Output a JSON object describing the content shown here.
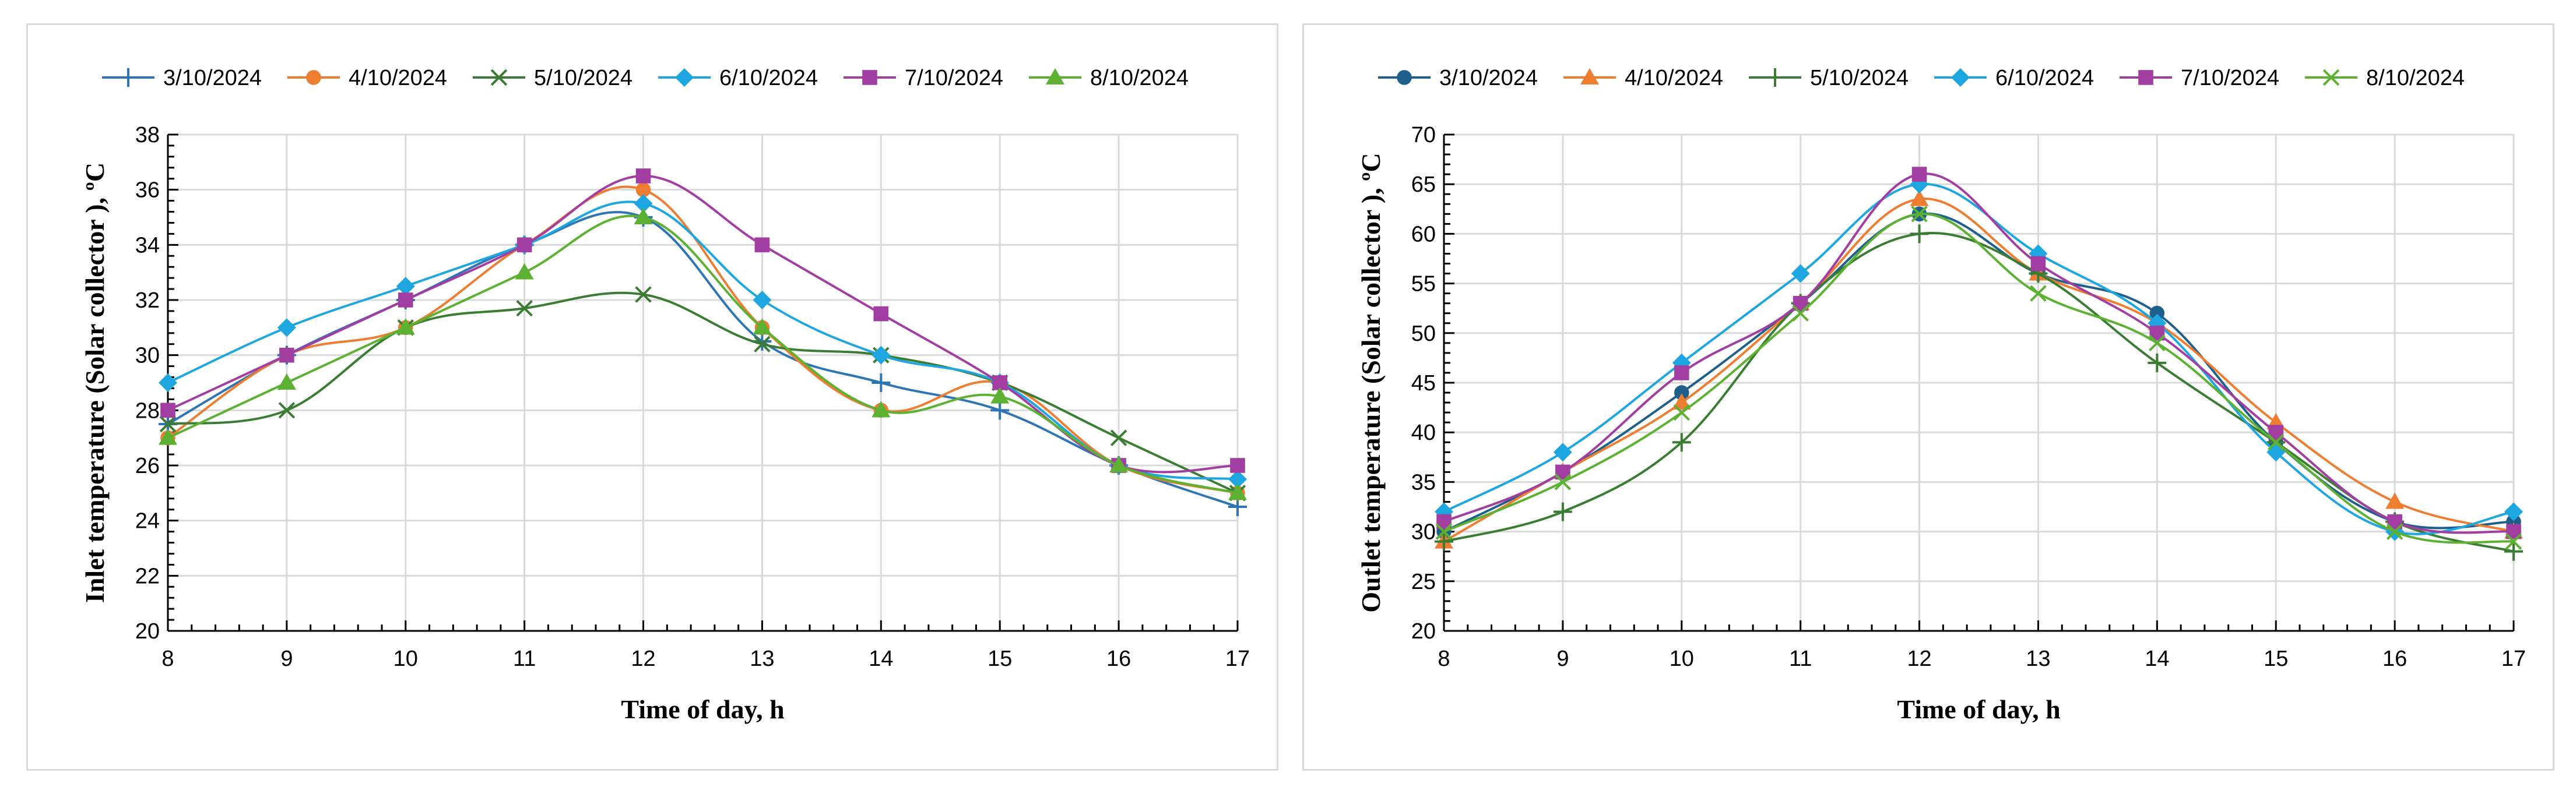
{
  "chart_data": [
    {
      "type": "line",
      "title": "",
      "xlabel": "Time of day, h",
      "ylabel": "Inlet temperature (Solar collector ), ºC",
      "x": [
        8,
        9,
        10,
        11,
        12,
        13,
        14,
        15,
        16,
        17
      ],
      "xlim": [
        8,
        17
      ],
      "ylim": [
        20,
        38
      ],
      "ytick_step": 2,
      "xticks": [
        "8",
        "9",
        "10",
        "11",
        "12",
        "13",
        "14",
        "15",
        "16",
        "17"
      ],
      "yticks": [
        "20",
        "22",
        "24",
        "26",
        "28",
        "30",
        "32",
        "34",
        "36",
        "38"
      ],
      "grid": true,
      "legend": "top",
      "series": [
        {
          "name": "3/10/2024",
          "color": "#2e75b6",
          "marker": "plus",
          "values": [
            27.5,
            30,
            32,
            34,
            35,
            30.5,
            29,
            28,
            26,
            24.5
          ]
        },
        {
          "name": "4/10/2024",
          "color": "#ed7d31",
          "marker": "circle",
          "values": [
            27,
            30,
            31,
            34,
            36,
            31,
            28,
            29,
            26,
            25
          ]
        },
        {
          "name": "5/10/2024",
          "color": "#3a7d32",
          "marker": "x",
          "values": [
            27.5,
            28,
            31,
            31.7,
            32.2,
            30.4,
            30,
            29,
            27,
            25
          ]
        },
        {
          "name": "6/10/2024",
          "color": "#1ea6e0",
          "marker": "diamond",
          "values": [
            29,
            31,
            32.5,
            34,
            35.5,
            32,
            30,
            29,
            26,
            25.5
          ]
        },
        {
          "name": "7/10/2024",
          "color": "#a23ea2",
          "marker": "square",
          "values": [
            28,
            30,
            32,
            34,
            36.5,
            34,
            31.5,
            29,
            26,
            26
          ]
        },
        {
          "name": "8/10/2024",
          "color": "#5cb132",
          "marker": "triangle",
          "values": [
            27,
            29,
            31,
            33,
            35,
            31,
            28,
            28.5,
            26,
            25
          ]
        }
      ]
    },
    {
      "type": "line",
      "title": "",
      "xlabel": "Time of day, h",
      "ylabel": "Outlet temperature (Solar collector ), ºC",
      "x": [
        8,
        9,
        10,
        11,
        12,
        13,
        14,
        15,
        16,
        17
      ],
      "xlim": [
        8,
        17
      ],
      "ylim": [
        20,
        70
      ],
      "ytick_step": 5,
      "xticks": [
        "8",
        "9",
        "10",
        "11",
        "12",
        "13",
        "14",
        "15",
        "16",
        "17"
      ],
      "yticks": [
        "20",
        "25",
        "30",
        "35",
        "40",
        "45",
        "50",
        "55",
        "60",
        "65",
        "70"
      ],
      "grid": true,
      "legend": "top",
      "series": [
        {
          "name": "3/10/2024",
          "color": "#1f5f8b",
          "marker": "circle",
          "values": [
            30,
            36,
            44,
            53,
            62,
            56,
            52,
            39,
            31,
            31
          ]
        },
        {
          "name": "4/10/2024",
          "color": "#ed7d31",
          "marker": "triangle",
          "values": [
            29,
            36,
            43,
            53,
            63.5,
            56,
            51,
            41,
            33,
            30
          ]
        },
        {
          "name": "5/10/2024",
          "color": "#3a7d32",
          "marker": "plus",
          "values": [
            29,
            32,
            39,
            53,
            60,
            56,
            47,
            39,
            31,
            28
          ]
        },
        {
          "name": "6/10/2024",
          "color": "#1ea6e0",
          "marker": "diamond",
          "values": [
            32,
            38,
            47,
            56,
            65,
            58,
            51,
            38,
            30,
            32
          ]
        },
        {
          "name": "7/10/2024",
          "color": "#a23ea2",
          "marker": "square",
          "values": [
            31,
            36,
            46,
            53,
            66,
            57,
            50,
            40,
            31,
            30
          ]
        },
        {
          "name": "8/10/2024",
          "color": "#5cb132",
          "marker": "x",
          "values": [
            30,
            35,
            42,
            52,
            62,
            54,
            49,
            39,
            30,
            29
          ]
        }
      ]
    }
  ]
}
